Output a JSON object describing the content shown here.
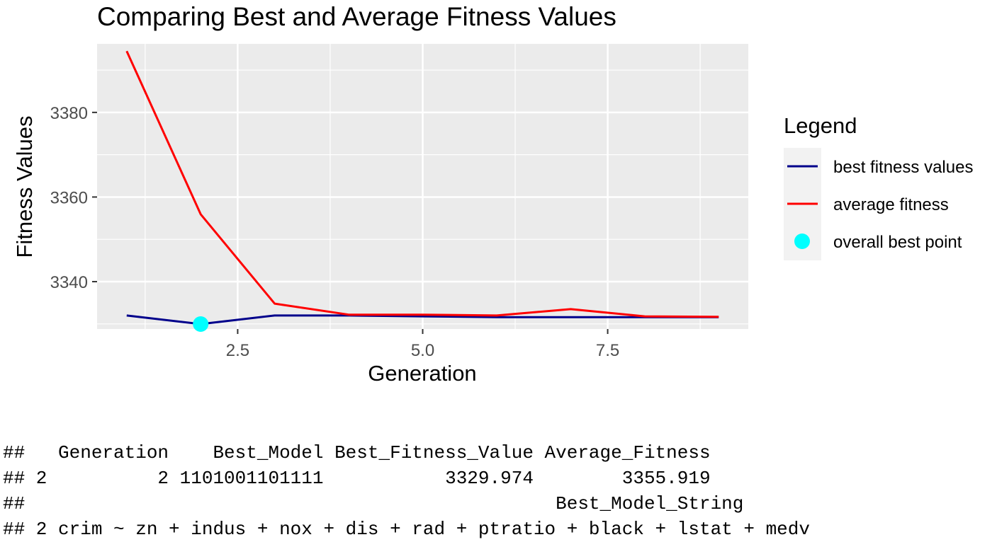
{
  "chart_data": {
    "type": "line",
    "title": "Comparing Best and Average Fitness Values",
    "xlabel": "Generation",
    "ylabel": "Fitness Values",
    "xlim": [
      0.6,
      9.4
    ],
    "ylim": [
      3328.8,
      3396.2
    ],
    "x_ticks": [
      2.5,
      5.0,
      7.5
    ],
    "x_tick_labels": [
      "2.5",
      "5.0",
      "7.5"
    ],
    "y_ticks": [
      3340,
      3360,
      3380
    ],
    "y_tick_labels": [
      "3340",
      "3360",
      "3380"
    ],
    "grid": true,
    "legend_title": "Legend",
    "legend_position": "right",
    "series": [
      {
        "name": "best fitness values",
        "color": "#00008B",
        "x": [
          1,
          2,
          3,
          4,
          5,
          6,
          7,
          8,
          9
        ],
        "y": [
          3332.0,
          3329.974,
          3332.0,
          3332.0,
          3331.8,
          3331.6,
          3331.6,
          3331.6,
          3331.6
        ]
      },
      {
        "name": "average fitness",
        "color": "#FF0000",
        "x": [
          1,
          2,
          3,
          4,
          5,
          6,
          7,
          8,
          9
        ],
        "y": [
          3394.5,
          3355.919,
          3334.8,
          3332.2,
          3332.2,
          3332.0,
          3333.5,
          3331.8,
          3331.7
        ]
      }
    ],
    "points": [
      {
        "name": "overall best point",
        "color": "#00FFFF",
        "x": 2,
        "y": 3329.974
      }
    ]
  },
  "console": {
    "lines": [
      "##   Generation    Best_Model Best_Fitness_Value Average_Fitness",
      "## 2          2 1101001101111           3329.974        3355.919",
      "##                                                Best_Model_String",
      "## 2 crim ~ zn + indus + nox + dis + rad + ptratio + black + lstat + medv"
    ]
  }
}
